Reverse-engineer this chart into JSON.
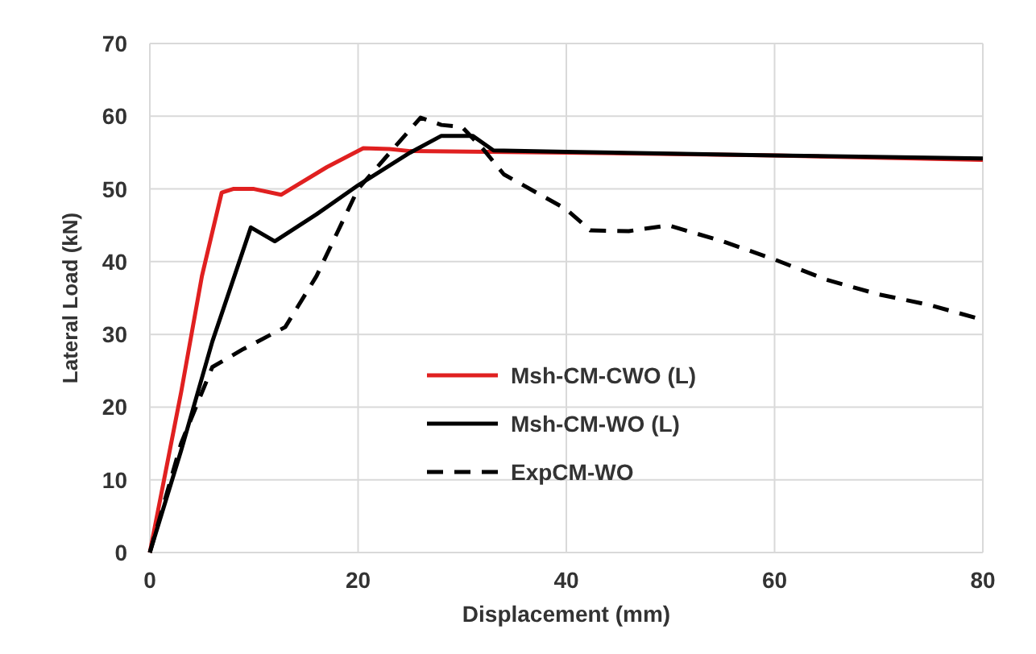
{
  "chart_data": {
    "type": "line",
    "xlabel": "Displacement (mm)",
    "ylabel": "Lateral Load (kN)",
    "xlim": [
      0,
      80
    ],
    "xticks": [
      0,
      20,
      40,
      60,
      80
    ],
    "ylim": [
      0,
      70
    ],
    "yticks": [
      0,
      10,
      20,
      30,
      40,
      50,
      60,
      70
    ],
    "grid": true,
    "legend": "bottom right",
    "marker": "none",
    "series": [
      {
        "name": "Msh-CM-CWO (L)",
        "color": "#e02020",
        "line_style": "solid",
        "x": [
          0,
          3,
          5,
          6.9,
          8,
          10,
          12.6,
          17,
          20.5,
          23,
          25,
          40,
          60,
          80
        ],
        "values": [
          0,
          22,
          38,
          49.5,
          50,
          50,
          49.2,
          53,
          55.6,
          55.5,
          55.2,
          55,
          54.6,
          54
        ]
      },
      {
        "name": "Msh-CM-WO (L)",
        "color": "#000000",
        "line_style": "solid",
        "x": [
          0,
          3,
          6,
          9.7,
          12,
          16,
          20,
          25,
          28,
          31,
          33,
          40,
          60,
          80
        ],
        "values": [
          0,
          14,
          29,
          44.7,
          42.8,
          46.5,
          50.5,
          55,
          57.3,
          57.3,
          55.3,
          55.1,
          54.6,
          54.2
        ]
      },
      {
        "name": "ExpCM-WO",
        "color": "#000000",
        "line_style": "dashed",
        "x": [
          0,
          3,
          6,
          9,
          13,
          16,
          20,
          26,
          28,
          30,
          32,
          34,
          40,
          42.3,
          46,
          49.8,
          55,
          60,
          65,
          70,
          75,
          80
        ],
        "values": [
          0,
          15,
          25.5,
          28,
          31,
          38,
          50,
          59.8,
          58.8,
          58.5,
          55.5,
          52,
          47.2,
          44.3,
          44.2,
          45,
          42.8,
          40.3,
          37.5,
          35.5,
          34,
          32
        ]
      }
    ]
  }
}
